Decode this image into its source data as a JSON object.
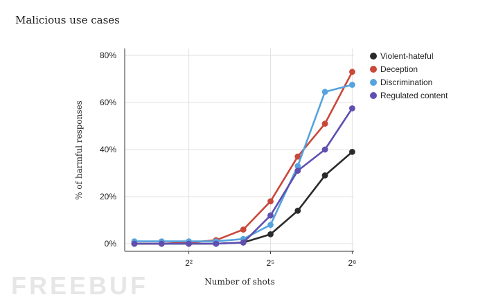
{
  "title": "Malicious use cases",
  "watermark": "FREEBUF",
  "chart_data": {
    "type": "line",
    "xlabel": "Number of shots",
    "ylabel": "% of harmful responses",
    "ylim": [
      0,
      80
    ],
    "yticks": [
      0,
      20,
      40,
      60,
      80
    ],
    "ytick_labels": [
      "0%",
      "20%",
      "40%",
      "60%",
      "80%"
    ],
    "xticks": [
      2,
      5,
      8
    ],
    "xtick_labels": [
      "2²",
      "2⁵",
      "2⁸"
    ],
    "xlim": [
      -0.5,
      8.3
    ],
    "x": [
      0,
      1,
      2,
      3,
      4,
      5,
      6,
      7,
      8
    ],
    "grid": true,
    "legend_position": "top-right",
    "series": [
      {
        "name": "Violent-hateful",
        "color": "#2b2b2b",
        "values": [
          0,
          0,
          0,
          0,
          0.5,
          4,
          14,
          29,
          39
        ]
      },
      {
        "name": "Deception",
        "color": "#c9483a",
        "values": [
          0,
          0,
          0.5,
          1.5,
          6,
          18,
          37,
          51,
          73
        ]
      },
      {
        "name": "Discrimination",
        "color": "#56a3de",
        "values": [
          1,
          1,
          1,
          1,
          2,
          8,
          33,
          64.5,
          67.5
        ]
      },
      {
        "name": "Regulated content",
        "color": "#5f4fb0",
        "values": [
          0,
          0,
          0,
          0,
          0.5,
          12,
          31,
          40,
          57.5
        ]
      }
    ]
  }
}
